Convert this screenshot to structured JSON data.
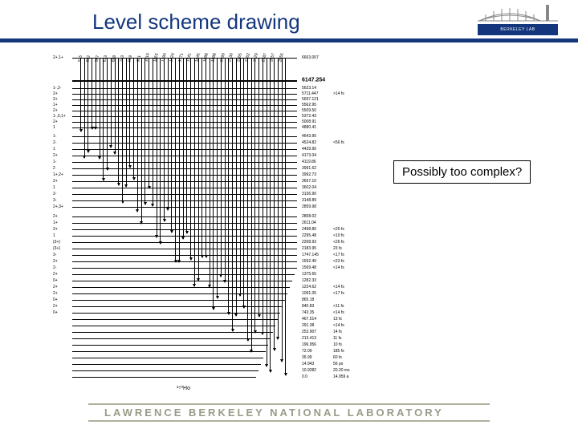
{
  "title": "Level scheme drawing",
  "logo": {
    "text": "BERKELEY LAB"
  },
  "callout": "Possibly too complex?",
  "footer": "LAWRENCE BERKELEY NATIONAL LABORATORY",
  "nuclide": "¹⁵⁰Ho",
  "diagram": {
    "top_level_energy": "6663.007",
    "bold_level_energy": "6147.254",
    "spin_labels_left": [
      "2+,1+",
      "1-,2-",
      "2+",
      "2+",
      "1+",
      "2+",
      "1-,0,1+",
      "2+",
      "1",
      "1-",
      "2-",
      "1",
      "2+",
      "1-",
      "2",
      "1+,2+",
      "2+",
      "1",
      "2-",
      "3-",
      "2+,3+",
      "2+",
      "1+",
      "2+",
      "1",
      "(3+)",
      "(3+)",
      "3-",
      "2+",
      "2-",
      "2+",
      "0+",
      "2+",
      "2+",
      "0+",
      "2+",
      "0+"
    ],
    "energy_labels_right": [
      "6663.007",
      "6147.254",
      "5623.14",
      "5711.447",
      "5697.121",
      "5562.95",
      "5509.50",
      "5372.43",
      "5008.91",
      "4880.41",
      "4643.90",
      "4524.82",
      "4429.90",
      "4173.04",
      "4119.86",
      "3991.62",
      "3992.73",
      "3657.10",
      "3602.04",
      "3136.90",
      "3148.89",
      "2859.98",
      "2808.02",
      "2611.04",
      "2498.80",
      "2295.48",
      "2268.93",
      "2183.95",
      "1747.145",
      "1692.49",
      "1569.48",
      "1375.65",
      "1282.33",
      "1224.62",
      "1091.05",
      "865.18",
      "840.83",
      "743.35",
      "467.514",
      "291.38",
      "253.907",
      "213.413",
      "196.956",
      "72.09",
      "35.99",
      "14.943",
      "10.9282",
      "0.0"
    ],
    "lifetime_labels": [
      ">14 fs",
      "",
      "",
      "",
      "",
      "",
      "",
      "",
      "<56 fs",
      "",
      "",
      "",
      "",
      "",
      "",
      "",
      "",
      "",
      "",
      "",
      "",
      "<25 fs",
      "<10 fs",
      "<26 fs",
      "23 fs",
      "<17 fs",
      "<23 fs",
      "<14 fs",
      "",
      "",
      "<14 fs",
      "<17 fs",
      "",
      "<11 fs",
      "<14 fs",
      "13 fs",
      "<14 fs",
      "14 fs",
      "11 fs",
      "10 fs",
      "185 fs",
      "60 fs",
      "56 ps",
      "20.20 ms",
      "14.959 a"
    ],
    "diag_labels": [
      "515",
      "552",
      "587",
      "613",
      "688",
      "743",
      "919",
      "951",
      "1010",
      "1153",
      "1290",
      "1324",
      "1371",
      "1541",
      "1645",
      "1888",
      "1988",
      "2099",
      "2130",
      "2265",
      "2362",
      "2429",
      "2587",
      "2657",
      "2855"
    ]
  },
  "colors": {
    "title": "#13367d",
    "underline": "#13367d",
    "line": "#000000",
    "footer": "#9a9a88",
    "footer_line": "#b0b0a0",
    "background": "#ffffff"
  }
}
